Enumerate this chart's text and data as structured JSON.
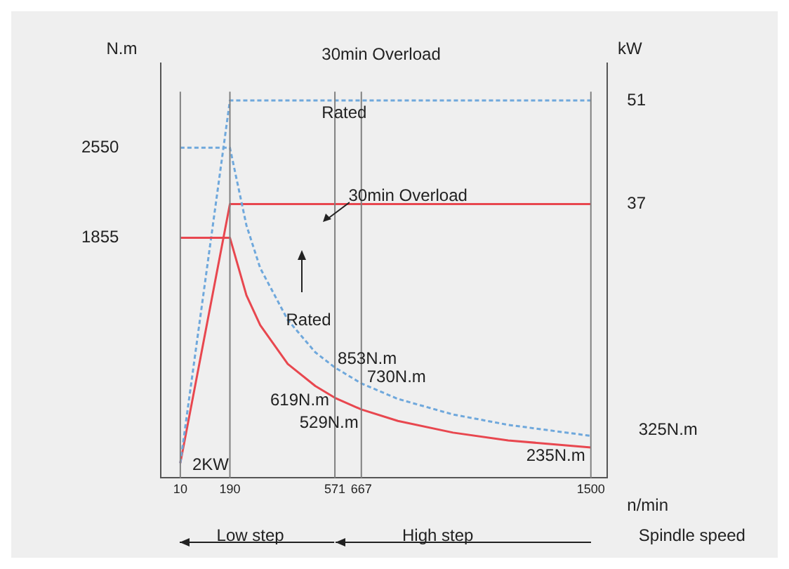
{
  "chart_data": {
    "type": "line",
    "xlabel": "n/min",
    "ylabel": "N.m",
    "y2label": "kW",
    "xlim": [
      -60,
      1560
    ],
    "xticks": [
      10,
      190,
      571,
      667,
      1500
    ],
    "ylim": [
      0,
      3200
    ],
    "yticks": [
      1855,
      2550
    ],
    "y2lim": [
      0,
      56
    ],
    "y2ticks": [
      37,
      51
    ],
    "grid": false,
    "legend": false,
    "marker": "none",
    "series": [
      {
        "color": "#6fa8dc",
        "line_style": "dashed",
        "x": [
          10,
          190,
          250,
          300,
          400,
          500,
          571,
          667,
          800,
          1000,
          1200,
          1500
        ],
        "values": [
          2550,
          2550,
          1950,
          1620,
          1220,
          970,
          853,
          730,
          610,
          490,
          410,
          325
        ]
      },
      {
        "color": "#e8474f",
        "line_style": "solid",
        "x": [
          10,
          190,
          250,
          300,
          400,
          500,
          571,
          667,
          800,
          1000,
          1200,
          1500
        ],
        "values": [
          1855,
          1855,
          1410,
          1180,
          880,
          710,
          619,
          529,
          440,
          350,
          290,
          235
        ]
      },
      {
        "color": "#6fa8dc",
        "line_style": "dashed",
        "axis": "y2",
        "x": [
          10,
          190,
          1500
        ],
        "values": [
          2,
          51,
          51
        ]
      },
      {
        "color": "#e8474f",
        "line_style": "solid",
        "axis": "y2",
        "x": [
          10,
          190,
          1500
        ],
        "values": [
          2,
          37,
          37
        ]
      }
    ],
    "ref_lines": [
      {
        "axis": "x",
        "value": 10,
        "color": "#808080"
      },
      {
        "axis": "x",
        "value": 190,
        "color": "#808080"
      },
      {
        "axis": "x",
        "value": 571,
        "color": "#808080"
      },
      {
        "axis": "x",
        "value": 667,
        "color": "#808080"
      },
      {
        "axis": "x",
        "value": 1500,
        "color": "#808080"
      }
    ],
    "annotations": [
      "30min Overload",
      "Rated",
      "30min Overload",
      "Rated",
      "2KW",
      "Low step",
      "High step",
      "Spindle speed",
      {
        "text": "853N.m",
        "x": 571,
        "y": 853
      },
      {
        "text": "730N.m",
        "x": 667,
        "y": 730
      },
      {
        "text": "619N.m",
        "x": 571,
        "y": 619
      },
      {
        "text": "529N.m",
        "x": 667,
        "y": 529
      },
      {
        "text": "325N.m",
        "x": 1500,
        "y": 325
      },
      {
        "text": "235N.m",
        "x": 1500,
        "y": 235
      }
    ]
  }
}
